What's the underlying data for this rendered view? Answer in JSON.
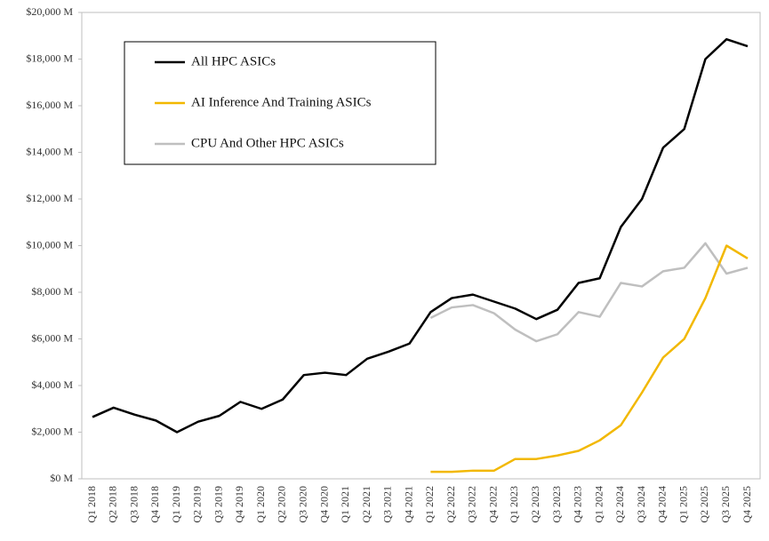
{
  "chart_data": {
    "type": "line",
    "categories": [
      "Q1 2018",
      "Q2 2018",
      "Q3 2018",
      "Q4 2018",
      "Q1 2019",
      "Q2 2019",
      "Q3 2019",
      "Q4 2019",
      "Q1 2020",
      "Q2 2020",
      "Q3 2020",
      "Q4 2020",
      "Q1 2021",
      "Q2 2021",
      "Q3 2021",
      "Q4 2021",
      "Q1 2022",
      "Q2 2022",
      "Q3 2022",
      "Q4 2022",
      "Q1 2023",
      "Q2 2023",
      "Q3 2023",
      "Q4 2023",
      "Q1 2024",
      "Q2 2024",
      "Q3 2024",
      "Q4 2024",
      "Q1 2025",
      "Q2 2025",
      "Q3 2025",
      "Q4 2025"
    ],
    "series": [
      {
        "name": "All HPC ASICs",
        "color": "#000000",
        "values": [
          2650,
          3050,
          2750,
          2500,
          2000,
          2450,
          2700,
          3300,
          3000,
          3400,
          4450,
          4550,
          4450,
          5150,
          5450,
          5800,
          7150,
          7750,
          7900,
          7600,
          7300,
          6850,
          7250,
          8400,
          8600,
          10800,
          12000,
          14200,
          15000,
          18000,
          18850,
          18550
        ]
      },
      {
        "name": "AI Inference And Training ASICs",
        "color": "#f2b800",
        "values": [
          null,
          null,
          null,
          null,
          null,
          null,
          null,
          null,
          null,
          null,
          null,
          null,
          null,
          null,
          null,
          null,
          300,
          300,
          350,
          350,
          850,
          850,
          1000,
          1200,
          1650,
          2300,
          3700,
          5200,
          6000,
          7750,
          10000,
          9450
        ]
      },
      {
        "name": "CPU And Other HPC ASICs",
        "color": "#bfbfbf",
        "values": [
          null,
          null,
          null,
          null,
          null,
          null,
          null,
          null,
          null,
          null,
          null,
          null,
          null,
          null,
          null,
          null,
          6900,
          7350,
          7450,
          7100,
          6400,
          5900,
          6200,
          7150,
          6950,
          8400,
          8250,
          8900,
          9050,
          10100,
          8800,
          9050
        ]
      }
    ],
    "ylim": [
      0,
      20000
    ],
    "yticks": [
      {
        "value": 0,
        "label": "$0 M"
      },
      {
        "value": 2000,
        "label": "$2,000 M"
      },
      {
        "value": 4000,
        "label": "$4,000 M"
      },
      {
        "value": 6000,
        "label": "$6,000 M"
      },
      {
        "value": 8000,
        "label": "$8,000 M"
      },
      {
        "value": 10000,
        "label": "$10,000 M"
      },
      {
        "value": 12000,
        "label": "$12,000 M"
      },
      {
        "value": 14000,
        "label": "$14,000 M"
      },
      {
        "value": 16000,
        "label": "$16,000 M"
      },
      {
        "value": 18000,
        "label": "$18,000 M"
      },
      {
        "value": 20000,
        "label": "$20,000 M"
      }
    ],
    "grid": false
  }
}
